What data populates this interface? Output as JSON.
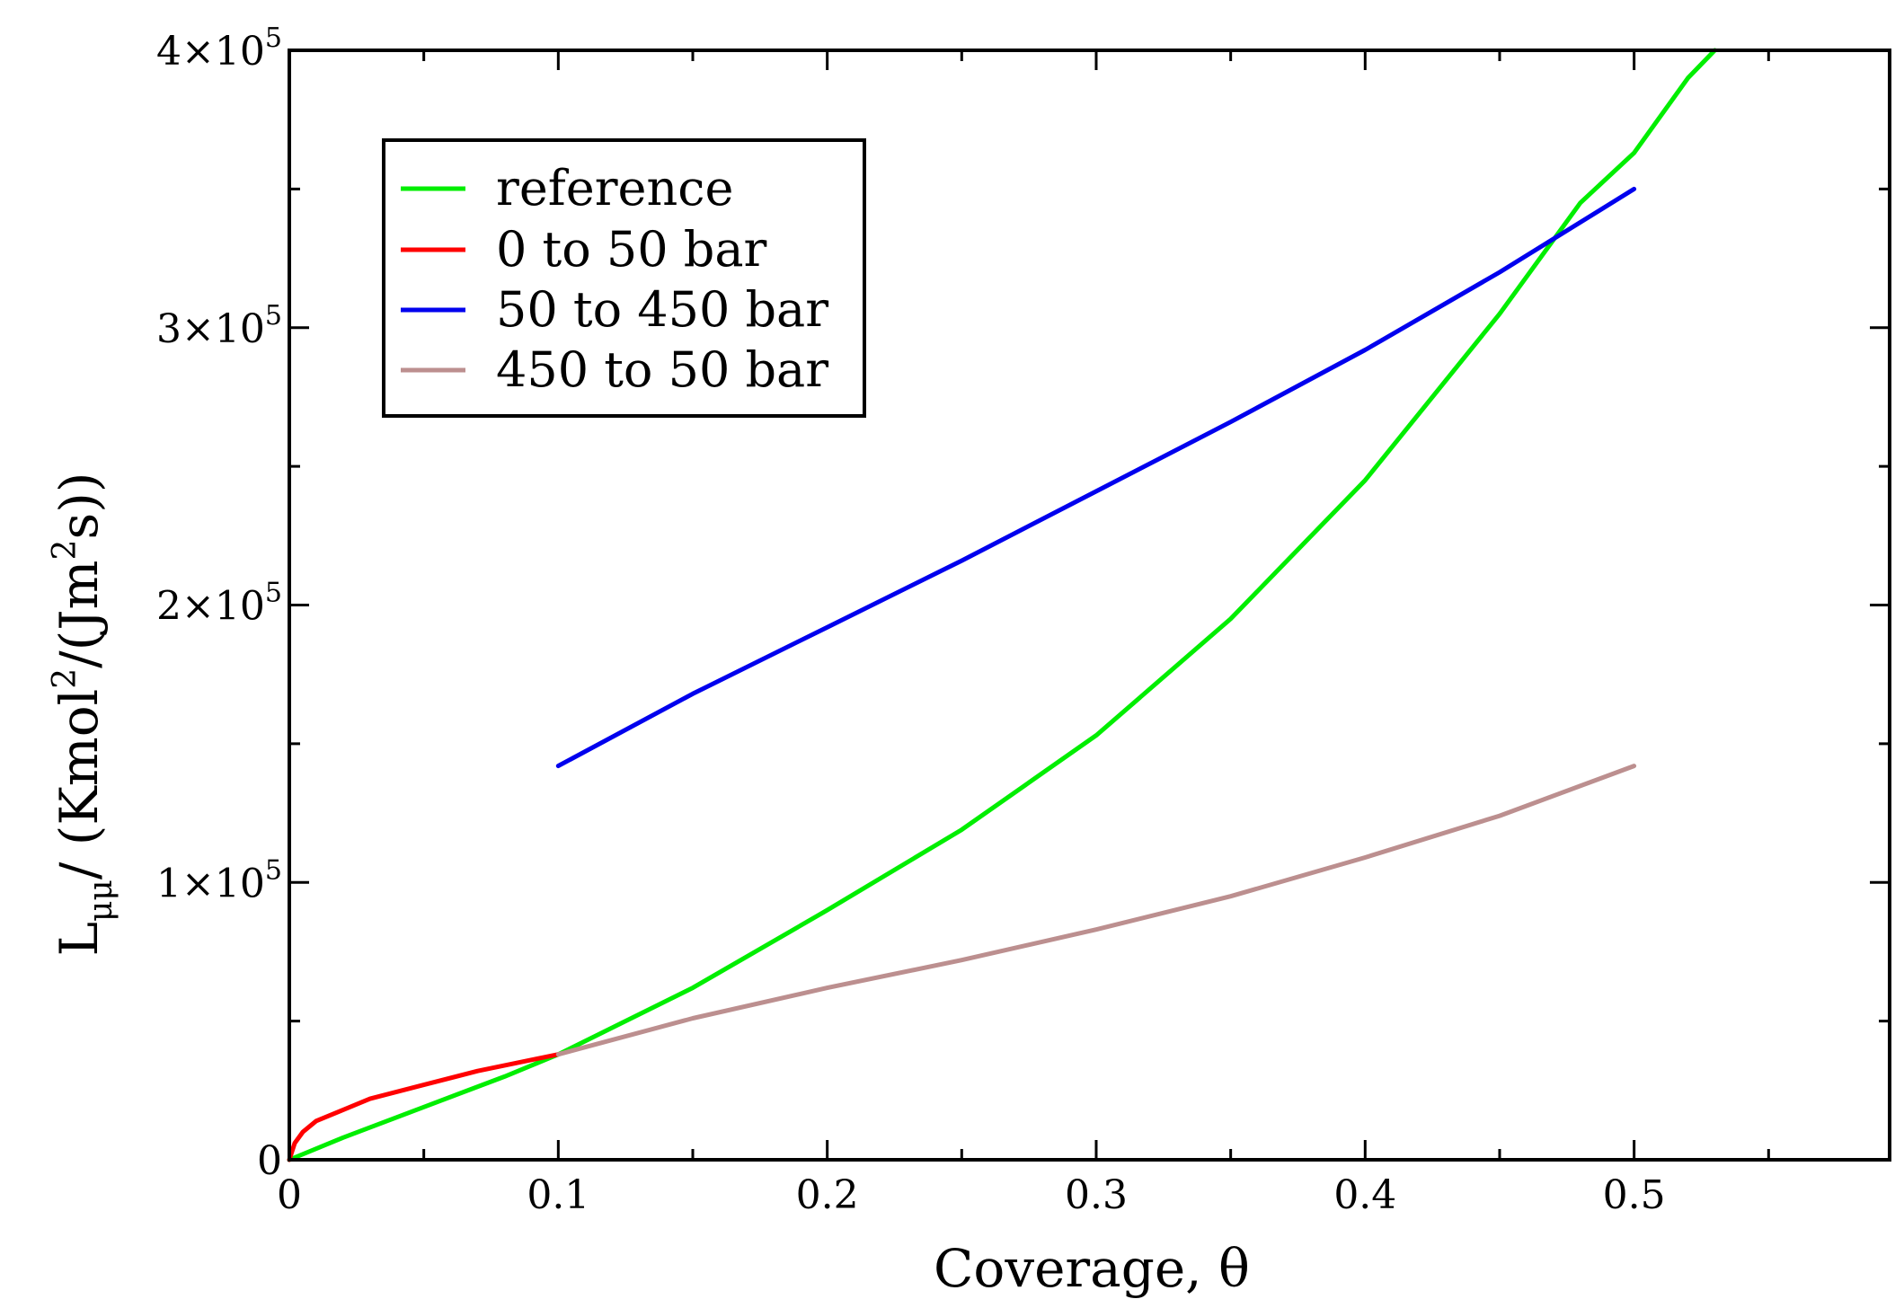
{
  "chart_data": {
    "type": "line",
    "title": "",
    "xlabel": "Coverage, θ",
    "ylabel_parts": {
      "main": "L",
      "sub": "μμ",
      "unit_prefix": "/ (Kmol",
      "sup1": "2",
      "unit_mid": "/(Jm",
      "sup2": "2",
      "unit_suffix": "s))"
    },
    "xlim": [
      0,
      0.595
    ],
    "ylim": [
      0,
      400000
    ],
    "x_ticks": [
      {
        "value": 0,
        "label": "0"
      },
      {
        "value": 0.1,
        "label": "0.1"
      },
      {
        "value": 0.2,
        "label": "0.2"
      },
      {
        "value": 0.3,
        "label": "0.3"
      },
      {
        "value": 0.4,
        "label": "0.4"
      },
      {
        "value": 0.5,
        "label": "0.5"
      }
    ],
    "y_ticks": [
      {
        "value": 0,
        "label": "0"
      },
      {
        "value": 100000,
        "mantissa": "1×10",
        "exp": "5"
      },
      {
        "value": 200000,
        "mantissa": "2×10",
        "exp": "5"
      },
      {
        "value": 300000,
        "mantissa": "3×10",
        "exp": "5"
      },
      {
        "value": 400000,
        "mantissa": "4×10",
        "exp": "5"
      }
    ],
    "legend_position": "top-left",
    "series": [
      {
        "name": "reference",
        "color": "#00ee00",
        "x": [
          0,
          0.02,
          0.05,
          0.08,
          0.1,
          0.15,
          0.2,
          0.25,
          0.3,
          0.35,
          0.4,
          0.45,
          0.48,
          0.5,
          0.52,
          0.53
        ],
        "y": [
          0,
          8000,
          19000,
          30000,
          38000,
          62000,
          90000,
          119000,
          153000,
          195000,
          245000,
          305000,
          345000,
          363000,
          390000,
          400000
        ]
      },
      {
        "name": "0 to 50 bar",
        "color": "#ff0000",
        "x": [
          0,
          0.002,
          0.005,
          0.01,
          0.02,
          0.03,
          0.05,
          0.07,
          0.09,
          0.1
        ],
        "y": [
          0,
          6000,
          10000,
          14000,
          18000,
          22000,
          27000,
          32000,
          36000,
          38000
        ]
      },
      {
        "name": "50 to 450 bar",
        "color": "#0000ee",
        "x": [
          0.1,
          0.15,
          0.2,
          0.25,
          0.3,
          0.35,
          0.4,
          0.45,
          0.5
        ],
        "y": [
          142000,
          168000,
          192000,
          216000,
          241000,
          266000,
          292000,
          320000,
          350000
        ]
      },
      {
        "name": "450 to 50 bar",
        "color": "#bc8f8f",
        "x": [
          0.1,
          0.15,
          0.2,
          0.25,
          0.3,
          0.35,
          0.4,
          0.45,
          0.5
        ],
        "y": [
          38000,
          51000,
          62000,
          72000,
          83000,
          95000,
          109000,
          124000,
          142000
        ]
      }
    ]
  }
}
